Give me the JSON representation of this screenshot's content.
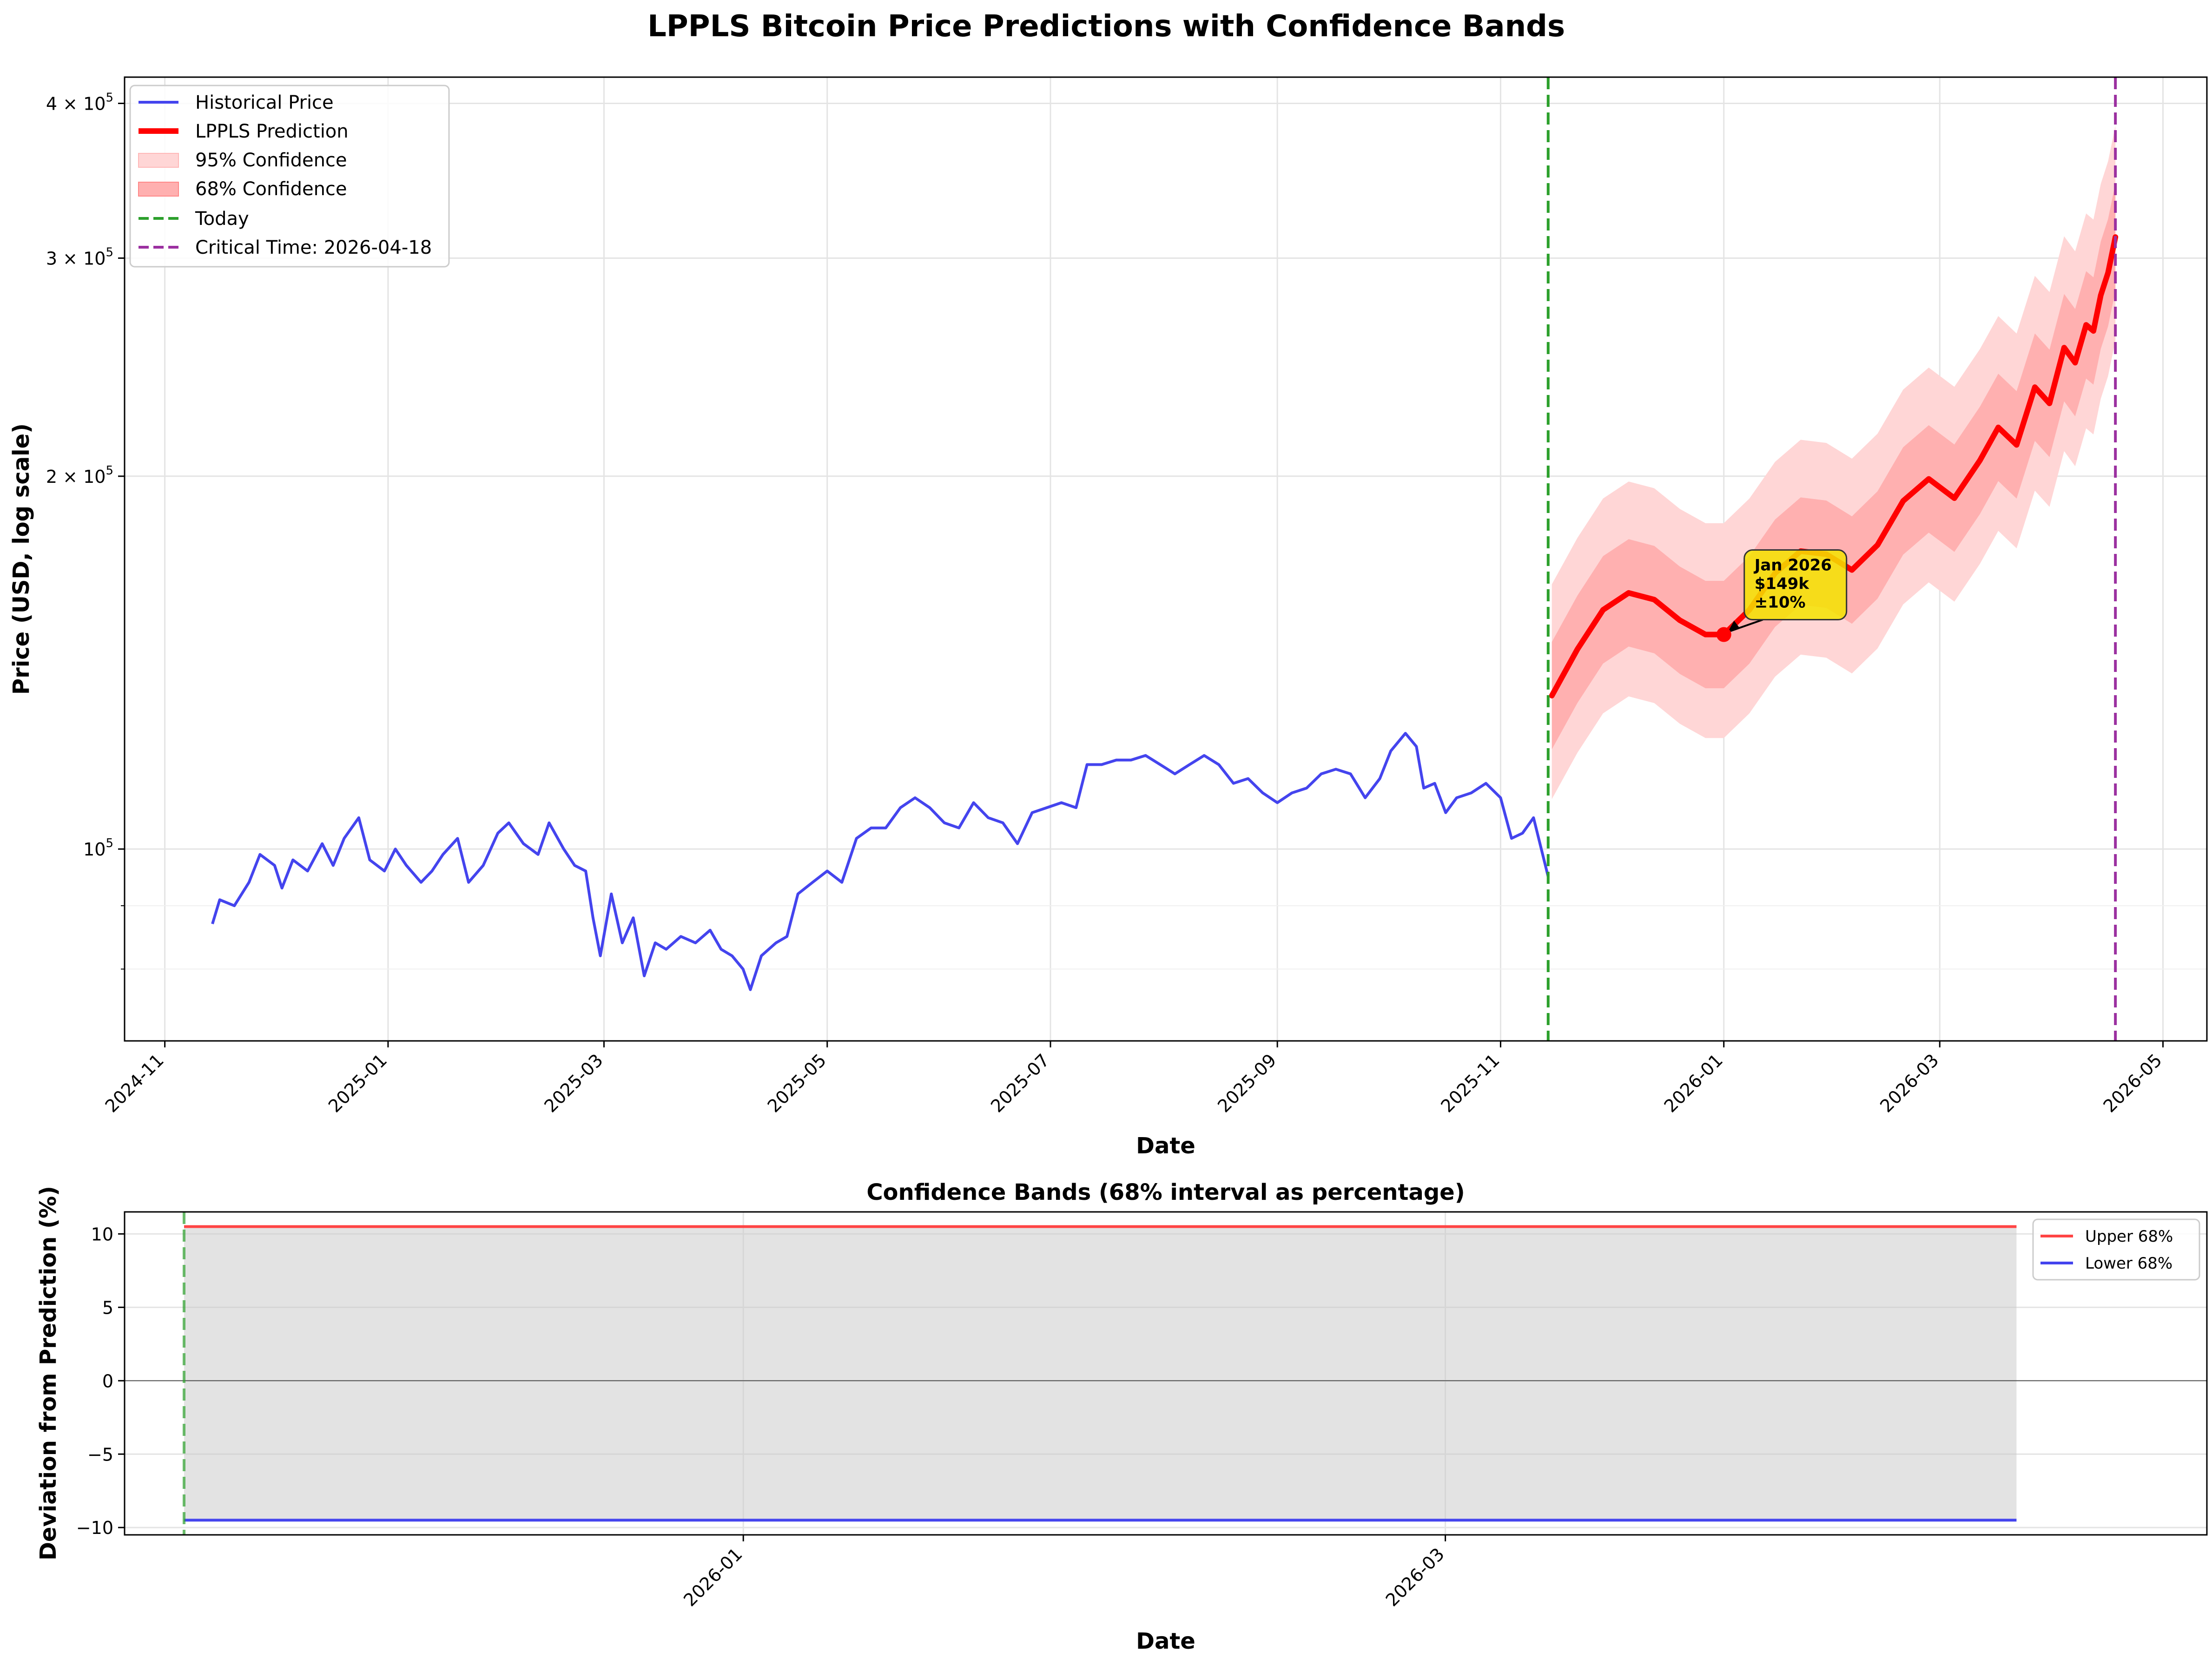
{
  "figure": {
    "title": "LPPLS Bitcoin Price Predictions with Confidence Bands"
  },
  "chart_data": [
    {
      "type": "line",
      "ylabel": "Price (USD, log scale)",
      "xlabel": "Date",
      "yscale": "log",
      "ylim": [
        70000,
        420000
      ],
      "xlim": [
        "2024-10-21",
        "2026-05-13"
      ],
      "x_ticks": [
        "2024-11",
        "2025-01",
        "2025-03",
        "2025-05",
        "2025-07",
        "2025-09",
        "2025-11",
        "2026-01",
        "2026-03",
        "2026-05"
      ],
      "y_ticks": [
        {
          "value": 100000,
          "label": "10",
          "exp": "5",
          "coef": ""
        },
        {
          "value": 200000,
          "label": "10",
          "exp": "5",
          "coef": "2 × "
        },
        {
          "value": 300000,
          "label": "10",
          "exp": "5",
          "coef": "3 × "
        },
        {
          "value": 400000,
          "label": "10",
          "exp": "5",
          "coef": "4 × "
        }
      ],
      "grid": true,
      "legend_position": "upper-left",
      "legend": [
        {
          "label": "Historical Price",
          "kind": "line",
          "color": "#4444ee"
        },
        {
          "label": "LPPLS Prediction",
          "kind": "thick-line",
          "color": "#ff0000"
        },
        {
          "label": "95% Confidence",
          "kind": "patch",
          "color": "#ffd6d6"
        },
        {
          "label": "68% Confidence",
          "kind": "patch",
          "color": "#ffb0b0"
        },
        {
          "label": "Today",
          "kind": "dashed",
          "color": "#2ca02c"
        },
        {
          "label": "Critical Time: 2026-04-18",
          "kind": "dashed",
          "color": "#9b30a0"
        }
      ],
      "series": [
        {
          "name": "Historical Price",
          "color": "#4444ee",
          "points": [
            [
              "2024-11-14",
              87000
            ],
            [
              "2024-11-16",
              91000
            ],
            [
              "2024-11-20",
              90000
            ],
            [
              "2024-11-24",
              94000
            ],
            [
              "2024-11-27",
              99000
            ],
            [
              "2024-12-01",
              97000
            ],
            [
              "2024-12-03",
              93000
            ],
            [
              "2024-12-06",
              98000
            ],
            [
              "2024-12-10",
              96000
            ],
            [
              "2024-12-14",
              101000
            ],
            [
              "2024-12-17",
              97000
            ],
            [
              "2024-12-20",
              102000
            ],
            [
              "2024-12-24",
              106000
            ],
            [
              "2024-12-27",
              98000
            ],
            [
              "2024-12-31",
              96000
            ],
            [
              "2025-01-03",
              100000
            ],
            [
              "2025-01-06",
              97000
            ],
            [
              "2025-01-10",
              94000
            ],
            [
              "2025-01-13",
              96000
            ],
            [
              "2025-01-16",
              99000
            ],
            [
              "2025-01-20",
              102000
            ],
            [
              "2025-01-23",
              94000
            ],
            [
              "2025-01-27",
              97000
            ],
            [
              "2025-01-31",
              103000
            ],
            [
              "2025-02-03",
              105000
            ],
            [
              "2025-02-07",
              101000
            ],
            [
              "2025-02-11",
              99000
            ],
            [
              "2025-02-14",
              105000
            ],
            [
              "2025-02-18",
              100000
            ],
            [
              "2025-02-21",
              97000
            ],
            [
              "2025-02-24",
              96000
            ],
            [
              "2025-02-26",
              88000
            ],
            [
              "2025-02-28",
              82000
            ],
            [
              "2025-03-03",
              92000
            ],
            [
              "2025-03-06",
              84000
            ],
            [
              "2025-03-09",
              88000
            ],
            [
              "2025-03-12",
              79000
            ],
            [
              "2025-03-15",
              84000
            ],
            [
              "2025-03-18",
              83000
            ],
            [
              "2025-03-22",
              85000
            ],
            [
              "2025-03-26",
              84000
            ],
            [
              "2025-03-30",
              86000
            ],
            [
              "2025-04-02",
              83000
            ],
            [
              "2025-04-05",
              82000
            ],
            [
              "2025-04-08",
              80000
            ],
            [
              "2025-04-10",
              77000
            ],
            [
              "2025-04-13",
              82000
            ],
            [
              "2025-04-17",
              84000
            ],
            [
              "2025-04-20",
              85000
            ],
            [
              "2025-04-23",
              92000
            ],
            [
              "2025-04-27",
              94000
            ],
            [
              "2025-05-01",
              96000
            ],
            [
              "2025-05-05",
              94000
            ],
            [
              "2025-05-09",
              102000
            ],
            [
              "2025-05-13",
              104000
            ],
            [
              "2025-05-17",
              104000
            ],
            [
              "2025-05-21",
              108000
            ],
            [
              "2025-05-25",
              110000
            ],
            [
              "2025-05-29",
              108000
            ],
            [
              "2025-06-02",
              105000
            ],
            [
              "2025-06-06",
              104000
            ],
            [
              "2025-06-10",
              109000
            ],
            [
              "2025-06-14",
              106000
            ],
            [
              "2025-06-18",
              105000
            ],
            [
              "2025-06-22",
              101000
            ],
            [
              "2025-06-26",
              107000
            ],
            [
              "2025-06-30",
              108000
            ],
            [
              "2025-07-04",
              109000
            ],
            [
              "2025-07-08",
              108000
            ],
            [
              "2025-07-11",
              117000
            ],
            [
              "2025-07-15",
              117000
            ],
            [
              "2025-07-19",
              118000
            ],
            [
              "2025-07-23",
              118000
            ],
            [
              "2025-07-27",
              119000
            ],
            [
              "2025-07-31",
              117000
            ],
            [
              "2025-08-04",
              115000
            ],
            [
              "2025-08-08",
              117000
            ],
            [
              "2025-08-12",
              119000
            ],
            [
              "2025-08-16",
              117000
            ],
            [
              "2025-08-20",
              113000
            ],
            [
              "2025-08-24",
              114000
            ],
            [
              "2025-08-28",
              111000
            ],
            [
              "2025-09-01",
              109000
            ],
            [
              "2025-09-05",
              111000
            ],
            [
              "2025-09-09",
              112000
            ],
            [
              "2025-09-13",
              115000
            ],
            [
              "2025-09-17",
              116000
            ],
            [
              "2025-09-21",
              115000
            ],
            [
              "2025-09-25",
              110000
            ],
            [
              "2025-09-29",
              114000
            ],
            [
              "2025-10-02",
              120000
            ],
            [
              "2025-10-06",
              124000
            ],
            [
              "2025-10-09",
              121000
            ],
            [
              "2025-10-11",
              112000
            ],
            [
              "2025-10-14",
              113000
            ],
            [
              "2025-10-17",
              107000
            ],
            [
              "2025-10-20",
              110000
            ],
            [
              "2025-10-24",
              111000
            ],
            [
              "2025-10-28",
              113000
            ],
            [
              "2025-11-01",
              110000
            ],
            [
              "2025-11-04",
              102000
            ],
            [
              "2025-11-07",
              103000
            ],
            [
              "2025-11-10",
              106000
            ],
            [
              "2025-11-14",
              95000
            ]
          ]
        },
        {
          "name": "LPPLS Prediction",
          "color": "#ff0000",
          "points": [
            [
              "2025-11-15",
              133000
            ],
            [
              "2025-11-22",
              145000
            ],
            [
              "2025-11-29",
              156000
            ],
            [
              "2025-12-06",
              161000
            ],
            [
              "2025-12-13",
              159000
            ],
            [
              "2025-12-20",
              153000
            ],
            [
              "2025-12-27",
              149000
            ],
            [
              "2026-01-01",
              149000
            ],
            [
              "2026-01-08",
              156000
            ],
            [
              "2026-01-15",
              167000
            ],
            [
              "2026-01-22",
              174000
            ],
            [
              "2026-01-29",
              173000
            ],
            [
              "2026-02-05",
              168000
            ],
            [
              "2026-02-12",
              176000
            ],
            [
              "2026-02-19",
              191000
            ],
            [
              "2026-02-26",
              199000
            ],
            [
              "2026-03-05",
              192000
            ],
            [
              "2026-03-12",
              206000
            ],
            [
              "2026-03-17",
              219000
            ],
            [
              "2026-03-22",
              212000
            ],
            [
              "2026-03-27",
              236000
            ],
            [
              "2026-03-31",
              229000
            ],
            [
              "2026-04-04",
              254000
            ],
            [
              "2026-04-07",
              247000
            ],
            [
              "2026-04-10",
              265000
            ],
            [
              "2026-04-12",
              262000
            ],
            [
              "2026-04-14",
              280000
            ],
            [
              "2026-04-16",
              292000
            ],
            [
              "2026-04-18",
              312000
            ]
          ]
        }
      ],
      "bands": {
        "ci68": {
          "lower_pct": -9.5,
          "upper_pct": 10.5
        },
        "ci95": {
          "lower_pct": -17.5,
          "upper_pct": 23
        }
      },
      "vlines": [
        {
          "label": "Today",
          "x": "2025-11-14",
          "color": "#2ca02c"
        },
        {
          "label": "Critical Time",
          "x": "2026-04-18",
          "color": "#9b30a0"
        }
      ],
      "annotation": {
        "x": "2026-01-01",
        "y": 149000,
        "lines": [
          "Jan 2026",
          "$149k",
          "±10%"
        ]
      }
    },
    {
      "type": "line",
      "title": "Confidence Bands (68% interval as percentage)",
      "xlabel": "Date",
      "ylabel": "Deviation from Prediction (%)",
      "ylim": [
        -10.5,
        11.5
      ],
      "xlim": [
        "2025-11-10",
        "2026-05-04"
      ],
      "x_ticks": [
        "2026-01",
        "2026-03"
      ],
      "y_ticks": [
        -10,
        -5,
        0,
        5,
        10
      ],
      "y_tick_labels": [
        "−10",
        "−5",
        "0",
        "5",
        "10"
      ],
      "grid": true,
      "legend_position": "upper-right",
      "series": [
        {
          "name": "Upper 68%",
          "color": "#ff4444",
          "x": [
            "2025-11-15",
            "2026-04-18"
          ],
          "values": [
            10.5,
            10.5
          ]
        },
        {
          "name": "Lower 68%",
          "color": "#4444ee",
          "x": [
            "2025-11-15",
            "2026-04-18"
          ],
          "values": [
            -9.5,
            -9.5
          ]
        }
      ],
      "vline": {
        "x": "2025-11-15",
        "color": "#2ca02c"
      },
      "hline": 0
    }
  ]
}
